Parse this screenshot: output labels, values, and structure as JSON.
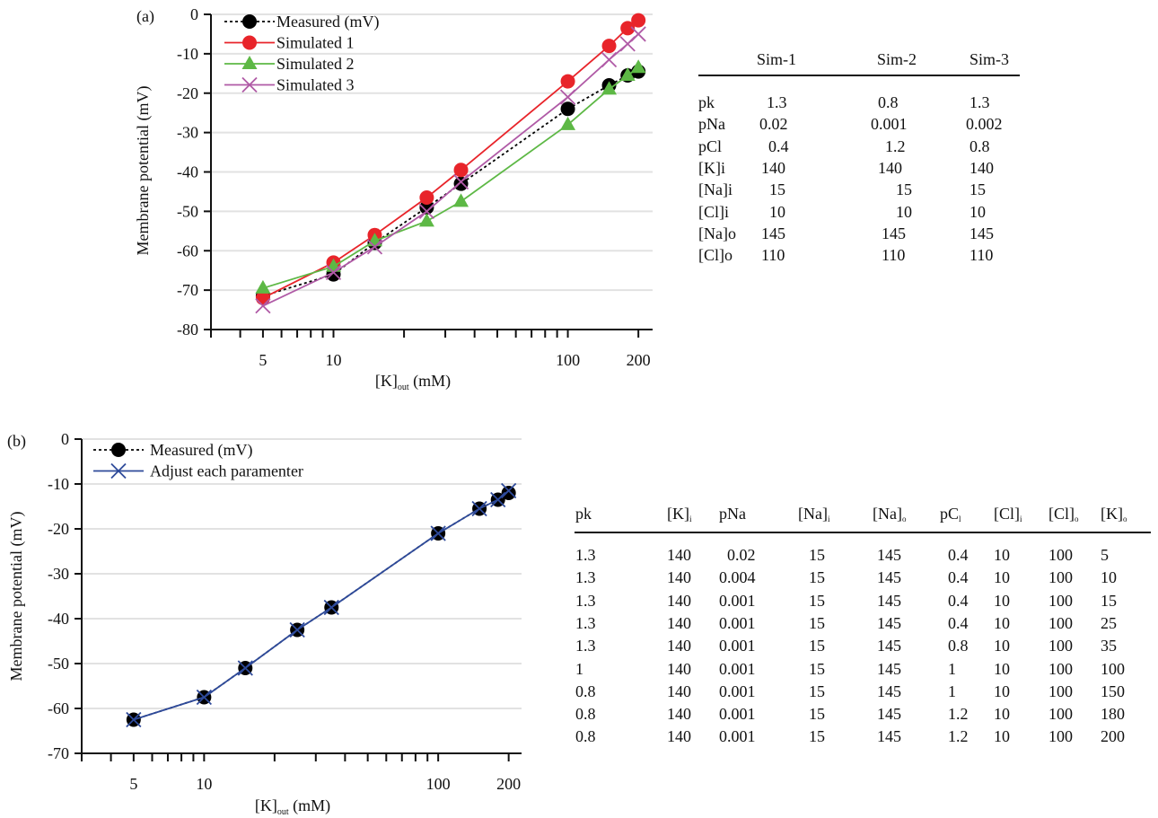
{
  "chart_data": [
    {
      "type": "line",
      "panel_label": "(a)",
      "xlabel": "[K]",
      "xlabel_sub": "out",
      "xlabel_unit": " (mM)",
      "ylabel": "Membrane  potential (mV)",
      "xscale": "log",
      "xlim": [
        3,
        230
      ],
      "ylim": [
        -80,
        0
      ],
      "xticks_labeled": [
        5,
        10,
        100,
        200
      ],
      "yticks": [
        0,
        -10,
        -20,
        -30,
        -40,
        -50,
        -60,
        -70,
        -80
      ],
      "grid": "horizontal",
      "legend_position": "top-left",
      "x": [
        5,
        10,
        15,
        25,
        35,
        100,
        150,
        180,
        200
      ],
      "series": [
        {
          "name": "Measured (mV)",
          "color": "#000000",
          "marker": "circle",
          "line": "dotted",
          "values": [
            -71.5,
            -66,
            -58,
            -49,
            -43,
            -24,
            -18,
            -15.5,
            -14.5
          ]
        },
        {
          "name": "Simulated 1",
          "color": "#e8242a",
          "marker": "circle",
          "line": "solid",
          "values": [
            -72,
            -63,
            -56,
            -46.5,
            -39.5,
            -17,
            -8,
            -3.5,
            -1.5
          ]
        },
        {
          "name": "Simulated 2",
          "color": "#5db845",
          "marker": "triangle",
          "line": "solid",
          "values": [
            -69.5,
            -64,
            -57.5,
            -52.5,
            -47.5,
            -28,
            -19,
            -15.5,
            -13.5
          ]
        },
        {
          "name": "Simulated 3",
          "color": "#b05aa6",
          "marker": "x",
          "line": "solid",
          "values": [
            -74,
            -65.5,
            -59,
            -50,
            -42.5,
            -21,
            -11.5,
            -7.5,
            -5
          ]
        }
      ]
    },
    {
      "type": "line",
      "panel_label": "(b)",
      "xlabel": "[K]",
      "xlabel_sub": "out",
      "xlabel_unit": " (mM)",
      "ylabel": "Membrane  potential (mV)",
      "xscale": "log",
      "xlim": [
        3,
        227
      ],
      "ylim": [
        -70,
        0
      ],
      "xticks_labeled": [
        5,
        10,
        100,
        200
      ],
      "yticks": [
        0,
        -10,
        -20,
        -30,
        -40,
        -50,
        -60,
        -70
      ],
      "grid": "horizontal",
      "legend_position": "top-left",
      "x": [
        5,
        10,
        15,
        25,
        35,
        100,
        150,
        180,
        200
      ],
      "series": [
        {
          "name": "Measured (mV)",
          "color": "#000000",
          "marker": "circle",
          "line": "dotted",
          "values": [
            -62.5,
            -57.5,
            -51,
            -42.5,
            -37.5,
            -21,
            -15.5,
            -13.5,
            -12
          ]
        },
        {
          "name": "Adjust each paramenter",
          "color": "#2e4a9a",
          "marker": "x",
          "line": "solid",
          "values": [
            -62.5,
            -57.5,
            -51,
            -42.5,
            -37.5,
            -21,
            -15.5,
            -13.5,
            -11.5
          ]
        }
      ]
    }
  ],
  "table_a": {
    "headers": [
      "Sim-1",
      "Sim-2",
      "Sim-3"
    ],
    "rows": [
      {
        "label": "pk",
        "values": [
          "1.3",
          "0.8",
          "1.3"
        ]
      },
      {
        "label": "pNa",
        "values": [
          "0.02",
          "0.001",
          "0.002"
        ]
      },
      {
        "label": "pCl",
        "values": [
          "0.4",
          "1.2",
          "0.8"
        ]
      },
      {
        "label": "[K]i",
        "values": [
          "140",
          "140",
          "140"
        ]
      },
      {
        "label": "[Na]i",
        "values": [
          "15",
          "15",
          "15"
        ]
      },
      {
        "label": "[Cl]i",
        "values": [
          "10",
          "10",
          "10"
        ]
      },
      {
        "label": "[Na]o",
        "values": [
          "145",
          "145",
          "145"
        ]
      },
      {
        "label": "[Cl]o",
        "values": [
          "110",
          "110",
          "110"
        ]
      }
    ]
  },
  "table_b": {
    "headers": [
      {
        "main": "pk",
        "sub": ""
      },
      {
        "main": "[K]",
        "sub": "i"
      },
      {
        "main": "pNa",
        "sub": ""
      },
      {
        "main": "[Na]",
        "sub": "i"
      },
      {
        "main": "[Na]",
        "sub": "o"
      },
      {
        "main": "pC",
        "sub": "l"
      },
      {
        "main": "[Cl]",
        "sub": "i"
      },
      {
        "main": "[Cl]",
        "sub": "o"
      },
      {
        "main": "[K]",
        "sub": "o"
      }
    ],
    "rows": [
      [
        "1.3",
        "140",
        "0.02",
        "15",
        "145",
        "0.4",
        "10",
        "100",
        "5"
      ],
      [
        "1.3",
        "140",
        "0.004",
        "15",
        "145",
        "0.4",
        "10",
        "100",
        "10"
      ],
      [
        "1.3",
        "140",
        "0.001",
        "15",
        "145",
        "0.4",
        "10",
        "100",
        "15"
      ],
      [
        "1.3",
        "140",
        "0.001",
        "15",
        "145",
        "0.4",
        "10",
        "100",
        "25"
      ],
      [
        "1.3",
        "140",
        "0.001",
        "15",
        "145",
        "0.8",
        "10",
        "100",
        "35"
      ],
      [
        "1",
        "140",
        "0.001",
        "15",
        "145",
        "1",
        "10",
        "100",
        "100"
      ],
      [
        "0.8",
        "140",
        "0.001",
        "15",
        "145",
        "1",
        "10",
        "100",
        "150"
      ],
      [
        "0.8",
        "140",
        "0.001",
        "15",
        "145",
        "1.2",
        "10",
        "100",
        "180"
      ],
      [
        "0.8",
        "140",
        "0.001",
        "15",
        "145",
        "1.2",
        "10",
        "100",
        "200"
      ]
    ]
  }
}
